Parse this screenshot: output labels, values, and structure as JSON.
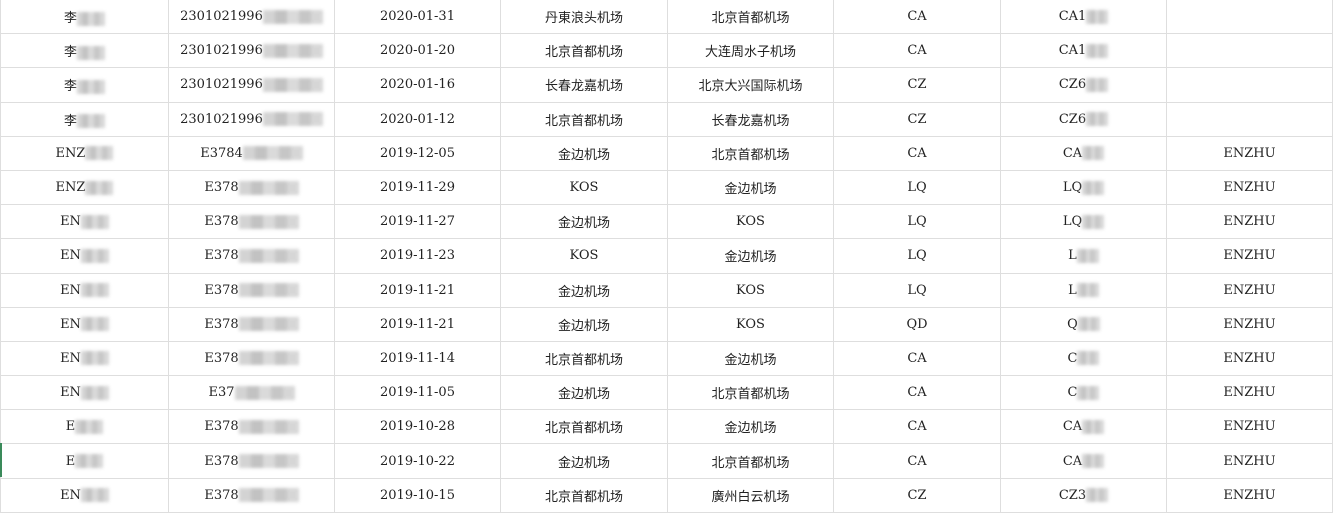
{
  "rows": [
    [
      "李",
      "2301021996",
      "2020-01-31",
      "丹東浪头机场",
      "北京首都机场",
      "CA",
      "CA1",
      ""
    ],
    [
      "李",
      "2301021996",
      "2020-01-20",
      "北京首都机场",
      "大连周水子机场",
      "CA",
      "CA1",
      ""
    ],
    [
      "李",
      "2301021996",
      "2020-01-16",
      "长春龙嘉机场",
      "北京大兴国际机场",
      "CZ",
      "CZ6",
      ""
    ],
    [
      "李",
      "2301021996",
      "2020-01-12",
      "北京首都机场",
      "长春龙嘉机场",
      "CZ",
      "CZ6",
      ""
    ],
    [
      "ENZ",
      "E3784",
      "2019-12-05",
      "金边机场",
      "北京首都机场",
      "CA",
      "CA",
      "ENZHU"
    ],
    [
      "ENZ",
      "E378",
      "2019-11-29",
      "KOS",
      "金边机场",
      "LQ",
      "LQ",
      "ENZHU"
    ],
    [
      "EN",
      "E378",
      "2019-11-27",
      "金边机场",
      "KOS",
      "LQ",
      "LQ",
      "ENZHU"
    ],
    [
      "EN",
      "E378",
      "2019-11-23",
      "KOS",
      "金边机场",
      "LQ",
      "L",
      "ENZHU"
    ],
    [
      "EN",
      "E378",
      "2019-11-21",
      "金边机场",
      "KOS",
      "LQ",
      "L",
      "ENZHU"
    ],
    [
      "EN",
      "E378",
      "2019-11-21",
      "金边机场",
      "KOS",
      "QD",
      "Q",
      "ENZHU"
    ],
    [
      "EN",
      "E378",
      "2019-11-14",
      "北京首都机场",
      "金边机场",
      "CA",
      "C",
      "ENZHU"
    ],
    [
      "EN",
      "E37",
      "2019-11-05",
      "金边机场",
      "北京首都机场",
      "CA",
      "C",
      "ENZHU"
    ],
    [
      "E",
      "E378",
      "2019-10-28",
      "北京首都机场",
      "金边机场",
      "CA",
      "CA",
      "ENZHU"
    ],
    [
      "E",
      "E378",
      "2019-10-22",
      "金边机场",
      "北京首都机场",
      "CA",
      "CA",
      "ENZHU"
    ],
    [
      "EN",
      "E378",
      "2019-10-15",
      "北京首都机场",
      "廣州白云机场",
      "CZ",
      "CZ3",
      "ENZHU"
    ]
  ]
}
